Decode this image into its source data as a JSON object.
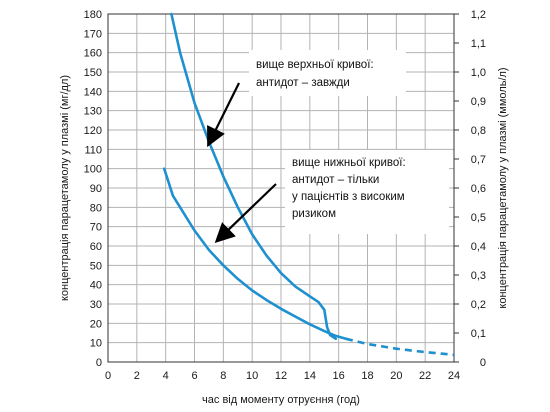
{
  "chart_data": {
    "type": "line",
    "xlabel": "час від моменту отруєння (год)",
    "ylabel": "концентрація парацетамолу у плазмі (мг/дл)",
    "y2label": "концентрація парацетамолу у плазмі (ммоль/л)",
    "xlim": [
      0,
      24
    ],
    "ylim": [
      0,
      180
    ],
    "y2lim": [
      0,
      1.2
    ],
    "grid": true,
    "x_ticks": [
      "0",
      "2",
      "4",
      "6",
      "8",
      "10",
      "12",
      "14",
      "16",
      "18",
      "20",
      "22",
      "24"
    ],
    "y_ticks": [
      "0",
      "10",
      "20",
      "30",
      "40",
      "50",
      "60",
      "70",
      "80",
      "90",
      "100",
      "110",
      "120",
      "130",
      "140",
      "150",
      "160",
      "170",
      "180"
    ],
    "y2_ticks": [
      "0",
      "0,1",
      "0,2",
      "0,3",
      "0,4",
      "0,5",
      "0,6",
      "0,7",
      "0,8",
      "0,9",
      "1,0",
      "1,1",
      "1,2"
    ],
    "line_color": "#1e90d0",
    "series": [
      {
        "id": "upper",
        "x": [
          4.4,
          5,
          6,
          7,
          8,
          9,
          10,
          11,
          12,
          13,
          14,
          14.6,
          15,
          15.2,
          15.4,
          15.8
        ],
        "y": [
          180,
          160,
          134,
          114,
          96,
          80,
          66,
          55,
          46,
          39,
          34,
          31,
          27,
          18,
          14,
          12
        ]
      },
      {
        "id": "lower",
        "x": [
          3.9,
          4.5,
          5,
          6,
          7,
          8,
          9,
          10,
          11,
          12,
          13,
          14,
          15,
          15.8,
          16.5
        ],
        "y": [
          100,
          86,
          80,
          68,
          58,
          50,
          43,
          37,
          32,
          27.5,
          23.5,
          19.5,
          16,
          13.5,
          12
        ]
      },
      {
        "id": "extension",
        "style": "dashed",
        "x": [
          16.5,
          18,
          20,
          22,
          24
        ],
        "y": [
          12,
          9.3,
          6.9,
          5.1,
          3.7
        ]
      }
    ],
    "annotations": [
      {
        "id": "upper-note",
        "lines": [
          "вище верхньої кривої:",
          "антидот – завжди"
        ],
        "arrow_to": [
          7,
          113
        ]
      },
      {
        "id": "lower-note",
        "lines": [
          "вище нижньої кривої:",
          "антидот – тільки",
          "у пацієнтів з високим",
          "ризиком"
        ],
        "arrow_to": [
          7.6,
          63
        ]
      }
    ]
  }
}
